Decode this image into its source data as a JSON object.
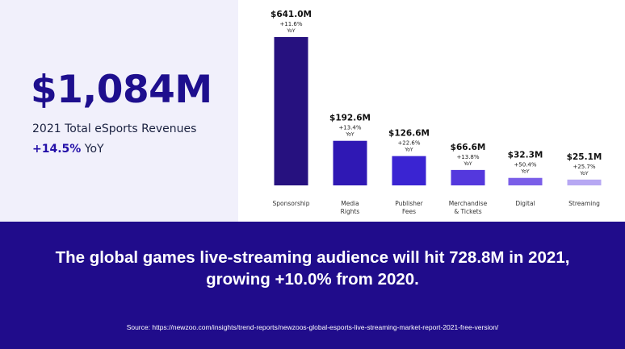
{
  "headline_stat": {
    "value": "$1,084M",
    "label": "2021 Total eSports Revenues",
    "yoy_value": "+14.5%",
    "yoy_label": "YoY"
  },
  "banner": {
    "line1": "The global games live-streaming audience will hit 728.8M in 2021,",
    "line2": "growing +10.0% from 2020.",
    "source": "Source: https://newzoo.com/insights/trend-reports/newzoos-global-esports-live-streaming-market-report-2021-free-version/"
  },
  "chart_data": {
    "type": "bar",
    "title": "",
    "xlabel": "",
    "ylabel": "",
    "grid": false,
    "ylim": [
      0,
      641
    ],
    "unit": "$M",
    "categories": [
      [
        "Sponsorship"
      ],
      [
        "Media",
        "Rights"
      ],
      [
        "Publisher",
        "Fees"
      ],
      [
        "Merchandise",
        "& Tickets"
      ],
      [
        "Digital"
      ],
      [
        "Streaming"
      ]
    ],
    "values": [
      641.0,
      192.6,
      126.6,
      66.6,
      32.3,
      25.1
    ],
    "value_labels": [
      "$641.0M",
      "$192.6M",
      "$126.6M",
      "$66.6M",
      "$32.3M",
      "$25.1M"
    ],
    "growth_labels": [
      "+11.6%",
      "+13.4%",
      "+22.6%",
      "+13.8%",
      "+50.4%",
      "+25.7%"
    ],
    "growth_suffix": "YoY",
    "colors": [
      "#26117f",
      "#2f18b4",
      "#3a24d2",
      "#5438dd",
      "#7a5ee8",
      "#b7a8f3"
    ]
  }
}
